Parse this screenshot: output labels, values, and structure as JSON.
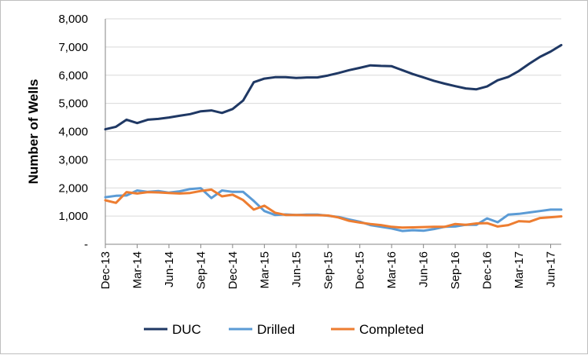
{
  "chart_data": {
    "type": "line",
    "title": "",
    "xlabel": "",
    "ylabel": "Number of Wells",
    "ylim": [
      0,
      8000
    ],
    "yticks": [
      0,
      1000,
      2000,
      3000,
      4000,
      5000,
      6000,
      7000,
      8000
    ],
    "ytick_labels": [
      "-",
      "1,000",
      "2,000",
      "3,000",
      "4,000",
      "5,000",
      "6,000",
      "7,000",
      "8,000"
    ],
    "x": [
      "Dec-13",
      "Jan-14",
      "Feb-14",
      "Mar-14",
      "Apr-14",
      "May-14",
      "Jun-14",
      "Jul-14",
      "Aug-14",
      "Sep-14",
      "Oct-14",
      "Nov-14",
      "Dec-14",
      "Jan-15",
      "Feb-15",
      "Mar-15",
      "Apr-15",
      "May-15",
      "Jun-15",
      "Jul-15",
      "Aug-15",
      "Sep-15",
      "Oct-15",
      "Nov-15",
      "Dec-15",
      "Jan-16",
      "Feb-16",
      "Mar-16",
      "Apr-16",
      "May-16",
      "Jun-16",
      "Jul-16",
      "Aug-16",
      "Sep-16",
      "Oct-16",
      "Nov-16",
      "Dec-16",
      "Jan-17",
      "Feb-17",
      "Mar-17",
      "Apr-17",
      "May-17",
      "Jun-17",
      "Jul-17"
    ],
    "xtick_labels": [
      "Dec-13",
      "Mar-14",
      "Jun-14",
      "Sep-14",
      "Dec-14",
      "Mar-15",
      "Jun-15",
      "Sep-15",
      "Dec-15",
      "Mar-16",
      "Jun-16",
      "Sep-16",
      "Dec-16",
      "Mar-17",
      "Jun-17"
    ],
    "grid": "horizontal",
    "legend": "bottom",
    "series": [
      {
        "name": "DUC",
        "color": "#1f3864",
        "values": [
          4080,
          4170,
          4420,
          4300,
          4420,
          4450,
          4500,
          4560,
          4620,
          4720,
          4750,
          4660,
          4800,
          5100,
          5750,
          5880,
          5930,
          5930,
          5900,
          5920,
          5920,
          5990,
          6080,
          6180,
          6260,
          6350,
          6330,
          6320,
          6180,
          6040,
          5920,
          5800,
          5700,
          5610,
          5530,
          5500,
          5600,
          5820,
          5940,
          6150,
          6410,
          6650,
          6840,
          7070
        ]
      },
      {
        "name": "Drilled",
        "color": "#5b9bd5",
        "values": [
          1670,
          1720,
          1730,
          1910,
          1860,
          1890,
          1830,
          1880,
          1960,
          1990,
          1640,
          1910,
          1860,
          1860,
          1540,
          1180,
          1040,
          1060,
          1040,
          1050,
          1050,
          1010,
          970,
          880,
          800,
          680,
          620,
          560,
          470,
          500,
          480,
          540,
          620,
          630,
          690,
          690,
          920,
          780,
          1050,
          1080,
          1130,
          1180,
          1230,
          1230
        ]
      },
      {
        "name": "Completed",
        "color": "#ed7d31",
        "values": [
          1560,
          1470,
          1850,
          1800,
          1850,
          1840,
          1820,
          1800,
          1820,
          1890,
          1940,
          1700,
          1760,
          1570,
          1230,
          1370,
          1120,
          1040,
          1040,
          1030,
          1030,
          1020,
          950,
          830,
          770,
          720,
          680,
          620,
          590,
          600,
          610,
          620,
          620,
          720,
          690,
          740,
          750,
          630,
          680,
          820,
          800,
          930,
          960,
          990
        ]
      }
    ]
  }
}
